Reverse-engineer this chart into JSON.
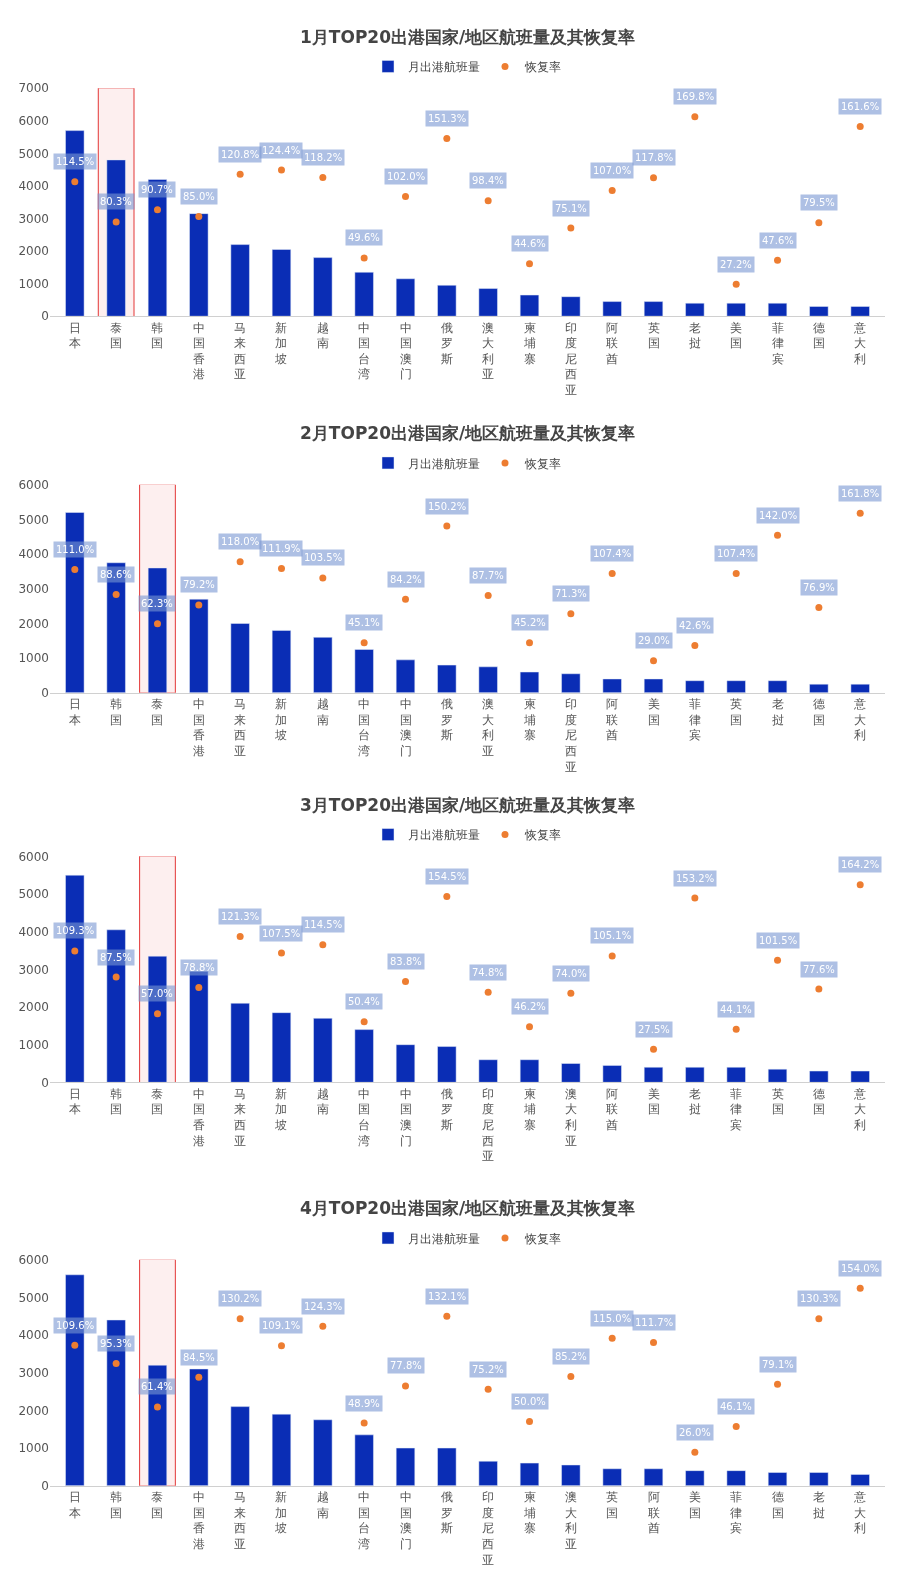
{
  "chart_data": [
    {
      "type": "bar",
      "title": "1月TOP20出港国家/地区航班量及其恢复率",
      "categories": [
        "日本",
        "泰国",
        "韩国",
        "中国香港",
        "马来西亚",
        "新加坡",
        "越南",
        "中国台湾",
        "中国澳门",
        "俄罗斯",
        "澳大利亚",
        "柬埔寨",
        "印度尼西亚",
        "阿联酋",
        "英国",
        "老挝",
        "美国",
        "菲律宾",
        "德国",
        "意大利"
      ],
      "ylim": [
        0,
        7000
      ],
      "yticks": [
        0,
        1000,
        2000,
        3000,
        4000,
        5000,
        6000,
        7000
      ],
      "legend": "top",
      "marker": "circle",
      "bands": [
        {
          "axis": "x",
          "from": "泰国",
          "to": "泰国",
          "color": "#e02020"
        }
      ],
      "series": [
        {
          "name": "月出港航班量",
          "color": "#0a2db5",
          "values": [
            5700,
            4800,
            4200,
            3150,
            2200,
            2050,
            1800,
            1350,
            1150,
            950,
            850,
            650,
            600,
            450,
            450,
            400,
            400,
            400,
            300,
            300
          ]
        },
        {
          "name": "恢复率",
          "type": "scatter",
          "axis": "y2",
          "color": "#ed7d31",
          "values": [
            114.5,
            80.3,
            90.7,
            85.0,
            120.8,
            124.4,
            118.2,
            49.6,
            102.0,
            151.3,
            98.4,
            44.6,
            75.1,
            107.0,
            117.8,
            169.8,
            27.2,
            47.6,
            79.5,
            161.6
          ],
          "value_labels": [
            "114.5%",
            "80.3%",
            "90.7%",
            "85.0%",
            "120.8%",
            "124.4%",
            "118.2%",
            "49.6%",
            "102.0%",
            "151.3%",
            "98.4%",
            "44.6%",
            "75.1%",
            "107.0%",
            "117.8%",
            "169.8%",
            "27.2%",
            "47.6%",
            "79.5%",
            "161.6%"
          ]
        }
      ]
    },
    {
      "type": "bar",
      "title": "2月TOP20出港国家/地区航班量及其恢复率",
      "categories": [
        "日本",
        "韩国",
        "泰国",
        "中国香港",
        "马来西亚",
        "新加坡",
        "越南",
        "中国台湾",
        "中国澳门",
        "俄罗斯",
        "澳大利亚",
        "柬埔寨",
        "印度尼西亚",
        "阿联酋",
        "美国",
        "菲律宾",
        "英国",
        "老挝",
        "德国",
        "意大利"
      ],
      "ylim": [
        0,
        6000
      ],
      "yticks": [
        0,
        1000,
        2000,
        3000,
        4000,
        5000,
        6000
      ],
      "legend": "top",
      "marker": "circle",
      "bands": [
        {
          "axis": "x",
          "from": "泰国",
          "to": "泰国",
          "color": "#e02020"
        }
      ],
      "series": [
        {
          "name": "月出港航班量",
          "color": "#0a2db5",
          "values": [
            5200,
            3750,
            3600,
            2700,
            2000,
            1800,
            1600,
            1250,
            950,
            800,
            750,
            600,
            550,
            400,
            400,
            350,
            350,
            350,
            250,
            250
          ]
        },
        {
          "name": "恢复率",
          "type": "scatter",
          "axis": "y2",
          "color": "#ed7d31",
          "values": [
            111.0,
            88.6,
            62.3,
            79.2,
            118.0,
            111.9,
            103.5,
            45.1,
            84.2,
            150.2,
            87.7,
            45.2,
            71.3,
            107.4,
            29.0,
            42.6,
            107.4,
            142.0,
            76.9,
            161.8
          ],
          "value_labels": [
            "111.0%",
            "88.6%",
            "62.3%",
            "79.2%",
            "118.0%",
            "111.9%",
            "103.5%",
            "45.1%",
            "84.2%",
            "150.2%",
            "87.7%",
            "45.2%",
            "71.3%",
            "107.4%",
            "29.0%",
            "42.6%",
            "107.4%",
            "142.0%",
            "76.9%",
            "161.8%"
          ]
        }
      ]
    },
    {
      "type": "bar",
      "title": "3月TOP20出港国家/地区航班量及其恢复率",
      "categories": [
        "日本",
        "韩国",
        "泰国",
        "中国香港",
        "马来西亚",
        "新加坡",
        "越南",
        "中国台湾",
        "中国澳门",
        "俄罗斯",
        "印度尼西亚",
        "柬埔寨",
        "澳大利亚",
        "阿联酋",
        "美国",
        "老挝",
        "菲律宾",
        "英国",
        "德国",
        "意大利"
      ],
      "ylim": [
        0,
        6000
      ],
      "yticks": [
        0,
        1000,
        2000,
        3000,
        4000,
        5000,
        6000
      ],
      "legend": "top",
      "marker": "circle",
      "bands": [
        {
          "axis": "x",
          "from": "泰国",
          "to": "泰国",
          "color": "#e02020"
        }
      ],
      "series": [
        {
          "name": "月出港航班量",
          "color": "#0a2db5",
          "values": [
            5500,
            4050,
            3350,
            2950,
            2100,
            1850,
            1700,
            1400,
            1000,
            950,
            600,
            600,
            500,
            450,
            400,
            400,
            400,
            350,
            300,
            300
          ]
        },
        {
          "name": "恢复率",
          "type": "scatter",
          "axis": "y2",
          "color": "#ed7d31",
          "values": [
            109.3,
            87.5,
            57.0,
            78.8,
            121.3,
            107.5,
            114.5,
            50.4,
            83.8,
            154.5,
            74.8,
            46.2,
            74.0,
            105.1,
            27.5,
            153.2,
            44.1,
            101.5,
            77.6,
            164.2
          ],
          "value_labels": [
            "109.3%",
            "87.5%",
            "57.0%",
            "78.8%",
            "121.3%",
            "107.5%",
            "114.5%",
            "50.4%",
            "83.8%",
            "154.5%",
            "74.8%",
            "46.2%",
            "74.0%",
            "105.1%",
            "27.5%",
            "153.2%",
            "44.1%",
            "101.5%",
            "77.6%",
            "164.2%"
          ]
        }
      ]
    },
    {
      "type": "bar",
      "title": "4月TOP20出港国家/地区航班量及其恢复率",
      "categories": [
        "日本",
        "韩国",
        "泰国",
        "中国香港",
        "马来西亚",
        "新加坡",
        "越南",
        "中国台湾",
        "中国澳门",
        "俄罗斯",
        "印度尼西亚",
        "柬埔寨",
        "澳大利亚",
        "英国",
        "阿联酋",
        "美国",
        "菲律宾",
        "德国",
        "老挝",
        "意大利"
      ],
      "ylim": [
        0,
        6000
      ],
      "yticks": [
        0,
        1000,
        2000,
        3000,
        4000,
        5000,
        6000
      ],
      "legend": "top",
      "marker": "circle",
      "bands": [
        {
          "axis": "x",
          "from": "泰国",
          "to": "泰国",
          "color": "#e02020"
        }
      ],
      "series": [
        {
          "name": "月出港航班量",
          "color": "#0a2db5",
          "values": [
            5600,
            4400,
            3200,
            3100,
            2100,
            1900,
            1750,
            1350,
            1000,
            1000,
            650,
            600,
            550,
            450,
            450,
            400,
            400,
            350,
            350,
            300
          ]
        },
        {
          "name": "恢复率",
          "type": "scatter",
          "axis": "y2",
          "color": "#ed7d31",
          "values": [
            109.6,
            95.3,
            61.4,
            84.5,
            130.2,
            109.1,
            124.3,
            48.9,
            77.8,
            132.1,
            75.2,
            50.0,
            85.2,
            115.0,
            111.7,
            26.0,
            46.1,
            79.1,
            130.3,
            154.0
          ],
          "value_labels": [
            "109.6%",
            "95.3%",
            "61.4%",
            "84.5%",
            "130.2%",
            "109.1%",
            "124.3%",
            "48.9%",
            "77.8%",
            "132.1%",
            "75.2%",
            "50.0%",
            "85.2%",
            "115.0%",
            "111.7%",
            "26.0%",
            "46.1%",
            "79.1%",
            "130.3%",
            "154.0%"
          ]
        }
      ]
    }
  ]
}
